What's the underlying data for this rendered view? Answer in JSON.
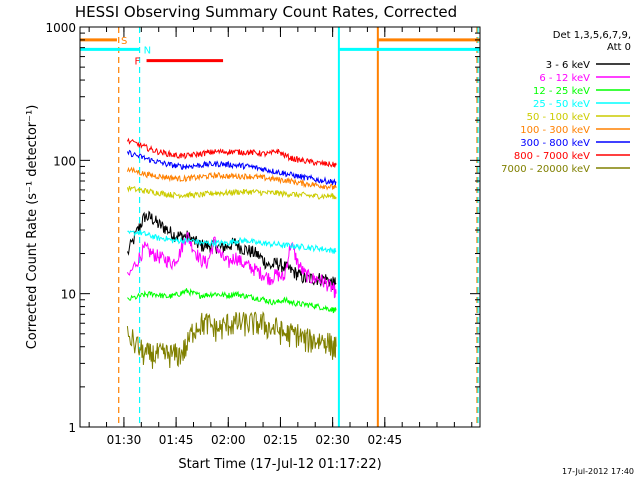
{
  "chart_data": {
    "type": "line",
    "title": "HESSI Observing Summary Count Rates, Corrected",
    "xlabel": "Start Time (17-Jul-12 01:17:22)",
    "ylabel": "Corrected Count Rate (s⁻¹ detector⁻¹)",
    "timestamp": "17-Jul-2012 17:40",
    "xlim": [
      17.37,
      132.37
    ],
    "ylog": true,
    "ylim": [
      1,
      1000
    ],
    "xticks": [
      {
        "v": 30,
        "label": "01:30"
      },
      {
        "v": 45,
        "label": "01:45"
      },
      {
        "v": 60,
        "label": "02:00"
      },
      {
        "v": 75,
        "label": "02:15"
      },
      {
        "v": 90,
        "label": "02:30"
      },
      {
        "v": 105,
        "label": "02:45"
      }
    ],
    "xminor_step": 5,
    "yticks": [
      {
        "v": 1,
        "label": "1"
      },
      {
        "v": 10,
        "label": "10"
      },
      {
        "v": 100,
        "label": "100"
      },
      {
        "v": 1000,
        "label": "1000"
      }
    ],
    "legend": {
      "placement": "right",
      "header1": "Det 1,3,5,6,7,9,",
      "header2": "Att 0"
    },
    "series": [
      {
        "name": "3 - 6 keV",
        "color": "#000000",
        "x": [
          31,
          34,
          36,
          38,
          40,
          42,
          44,
          46,
          48,
          50,
          52,
          54,
          56,
          58,
          60,
          62,
          64,
          66,
          68,
          70,
          72,
          74,
          76,
          78,
          80,
          82,
          84,
          86,
          88,
          90,
          91
        ],
        "y": [
          20,
          30,
          38,
          37,
          33,
          31,
          28,
          27,
          27,
          25,
          23,
          23,
          23,
          22,
          23,
          24,
          22,
          21,
          20,
          18,
          16,
          17,
          16,
          15,
          14,
          13,
          13,
          13,
          13,
          12,
          12
        ]
      },
      {
        "name": "6 - 12 keV",
        "color": "#ff00ff",
        "x": [
          31,
          34,
          36,
          38,
          40,
          42,
          44,
          46,
          48,
          50,
          52,
          54,
          56,
          58,
          60,
          62,
          64,
          66,
          68,
          70,
          72,
          74,
          76,
          78,
          80,
          82,
          84,
          86,
          88,
          90,
          91
        ],
        "y": [
          13,
          18,
          22,
          20,
          19,
          18,
          17,
          20,
          28,
          22,
          18,
          17,
          25,
          19,
          17,
          19,
          17,
          16,
          15,
          14,
          13,
          14,
          13,
          24,
          17,
          14,
          13,
          13,
          12,
          11,
          10
        ]
      },
      {
        "name": "12 - 25 keV",
        "color": "#00ff00",
        "x": [
          31,
          34,
          36,
          38,
          40,
          42,
          44,
          46,
          48,
          50,
          52,
          54,
          56,
          58,
          60,
          62,
          64,
          66,
          68,
          70,
          72,
          74,
          76,
          78,
          80,
          82,
          84,
          86,
          88,
          90,
          91
        ],
        "y": [
          9,
          9.5,
          9.8,
          10,
          9.8,
          9.5,
          9.6,
          10,
          10.5,
          10,
          9.7,
          9.8,
          10,
          9.8,
          9.7,
          10,
          9.7,
          9.5,
          9.3,
          9.1,
          8.7,
          8.6,
          9,
          8.6,
          8.4,
          8.3,
          8.2,
          8,
          7.8,
          7.6,
          7.5
        ]
      },
      {
        "name": "25 - 50 keV",
        "color": "#00ffff",
        "x": [
          31,
          34,
          36,
          38,
          40,
          42,
          44,
          46,
          48,
          50,
          52,
          54,
          56,
          58,
          60,
          62,
          64,
          66,
          68,
          70,
          72,
          74,
          76,
          78,
          80,
          82,
          84,
          86,
          88,
          90,
          91
        ],
        "y": [
          28,
          29,
          28,
          27,
          26,
          26,
          25,
          25,
          25,
          25,
          24,
          24,
          24,
          24,
          24,
          25,
          25,
          25,
          24,
          24,
          23.5,
          23.5,
          23,
          23,
          22.5,
          22.5,
          22,
          22,
          21.5,
          21,
          21
        ]
      },
      {
        "name": "50 - 100 keV",
        "color": "#cccc00",
        "x": [
          31,
          34,
          36,
          38,
          40,
          42,
          44,
          46,
          48,
          50,
          52,
          54,
          56,
          58,
          60,
          62,
          64,
          66,
          68,
          70,
          72,
          74,
          76,
          78,
          80,
          82,
          84,
          86,
          88,
          90,
          91
        ],
        "y": [
          62,
          60,
          59,
          58,
          57,
          56,
          55,
          55,
          55,
          55,
          55,
          56,
          57,
          57,
          57,
          58,
          58,
          58,
          58,
          57,
          57,
          57,
          56,
          56,
          55,
          55,
          54,
          54,
          54,
          54,
          53
        ]
      },
      {
        "name": "100 - 300 keV",
        "color": "#ff8000",
        "x": [
          31,
          34,
          36,
          38,
          40,
          42,
          44,
          46,
          48,
          50,
          52,
          54,
          56,
          58,
          60,
          62,
          64,
          66,
          68,
          70,
          72,
          74,
          76,
          78,
          80,
          82,
          84,
          86,
          88,
          90,
          91
        ],
        "y": [
          85,
          82,
          79,
          77,
          76,
          75,
          74,
          73,
          73,
          74,
          75,
          76,
          77,
          77,
          76,
          76,
          76,
          76,
          75,
          74,
          73,
          72,
          71,
          70,
          68,
          67,
          66,
          65,
          64,
          63,
          62
        ]
      },
      {
        "name": "300 - 800 keV",
        "color": "#0000ff",
        "x": [
          31,
          34,
          36,
          38,
          40,
          42,
          44,
          46,
          48,
          50,
          52,
          54,
          56,
          58,
          60,
          62,
          64,
          66,
          68,
          70,
          72,
          74,
          76,
          78,
          80,
          82,
          84,
          86,
          88,
          90,
          91
        ],
        "y": [
          115,
          108,
          104,
          100,
          97,
          94,
          92,
          90,
          90,
          91,
          92,
          93,
          94,
          94,
          93,
          92,
          91,
          90,
          88,
          86,
          84,
          82,
          80,
          78,
          76,
          74,
          73,
          71,
          70,
          69,
          68
        ]
      },
      {
        "name": "800 - 7000 keV",
        "color": "#ff0000",
        "x": [
          31,
          34,
          36,
          38,
          40,
          42,
          44,
          46,
          48,
          50,
          52,
          54,
          56,
          58,
          60,
          62,
          64,
          66,
          68,
          70,
          72,
          74,
          76,
          78,
          80,
          82,
          84,
          86,
          88,
          90,
          91
        ],
        "y": [
          140,
          132,
          126,
          120,
          116,
          113,
          110,
          108,
          108,
          110,
          112,
          114,
          116,
          116,
          116,
          116,
          115,
          115,
          114,
          112,
          112,
          118,
          110,
          104,
          101,
          99,
          97,
          95,
          94,
          93,
          92
        ]
      },
      {
        "name": "7000 - 20000 keV",
        "color": "#808000",
        "x": [
          31,
          34,
          36,
          38,
          40,
          42,
          44,
          46,
          48,
          50,
          52,
          54,
          56,
          58,
          60,
          62,
          64,
          66,
          68,
          70,
          72,
          74,
          76,
          78,
          80,
          82,
          84,
          86,
          88,
          90,
          91
        ],
        "y": [
          5,
          4,
          3.5,
          3.5,
          3.5,
          3.5,
          3.5,
          3.5,
          4,
          5.5,
          6,
          6,
          5.5,
          5.5,
          6,
          6,
          6,
          6,
          6,
          6,
          5.5,
          5.5,
          5,
          5,
          5,
          4.5,
          4.5,
          4.5,
          4.5,
          4,
          4
        ]
      }
    ],
    "flags": [
      {
        "label": "S",
        "color": "#ff8000",
        "y": 800,
        "segments": [
          [
            17.5,
            28
          ],
          [
            103,
            132.3
          ]
        ]
      },
      {
        "label": "N",
        "color": "#00ffff",
        "y": 680,
        "segments": [
          [
            17.5,
            34.5
          ],
          [
            92,
            132.3
          ]
        ]
      },
      {
        "label": "F",
        "color": "#ff0000",
        "y": 560,
        "segments": [
          [
            36.5,
            58.5
          ]
        ]
      }
    ],
    "markers": [
      {
        "x": 28.5,
        "color": "#ff8000",
        "style": "dashed"
      },
      {
        "x": 34.5,
        "color": "#00ffff",
        "style": "dashed"
      },
      {
        "x": 91.8,
        "color": "#00ffff",
        "style": "solid"
      },
      {
        "x": 103,
        "color": "#ff8000",
        "style": "solid"
      },
      {
        "x": 131.5,
        "color": "#ff8000",
        "style": "dashed"
      },
      {
        "x": 131.8,
        "color": "#00ffff",
        "style": "dashed"
      }
    ]
  }
}
